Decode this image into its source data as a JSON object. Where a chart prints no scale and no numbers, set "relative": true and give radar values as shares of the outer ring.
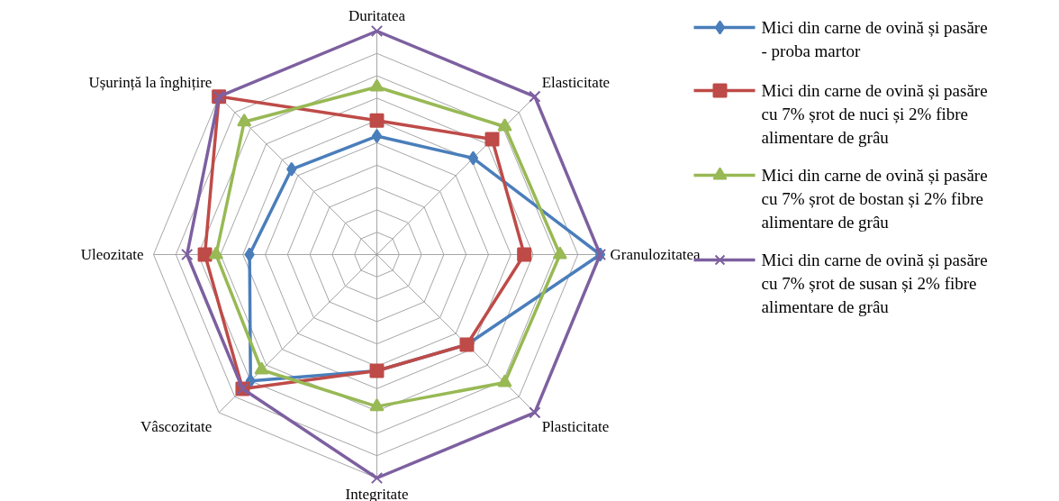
{
  "chart_data": {
    "type": "radar",
    "relative": true,
    "grid": true,
    "legend": "right",
    "categories": [
      "Duritatea",
      "Elasticitate",
      "Granulozitatea",
      "Plasticitate",
      "Integritate",
      "Vâscozitate",
      "Uleozitate",
      "Ușurință la înghițire"
    ],
    "series": [
      {
        "name": "Mici din carne de ovină și pasăre - proba martor",
        "color": "#4a7ebb",
        "marker": "diamond",
        "values": [
          0.53,
          0.61,
          1.0,
          0.57,
          0.52,
          0.8,
          0.57,
          0.54
        ]
      },
      {
        "name": "Mici din carne de ovină și pasăre cu 7% șrot de nuci și 2% fibre alimentare de grâu",
        "color": "#be4b48",
        "marker": "square",
        "values": [
          0.6,
          0.73,
          0.66,
          0.57,
          0.52,
          0.85,
          0.77,
          1.0
        ]
      },
      {
        "name": "Mici din carne de ovină și pasăre cu 7% șrot de bostan și 2% fibre alimentare de grâu",
        "color": "#98b954",
        "marker": "triangle",
        "values": [
          0.75,
          0.81,
          0.82,
          0.81,
          0.68,
          0.73,
          0.72,
          0.84
        ]
      },
      {
        "name": "Mici din carne de ovină și pasăre cu 7% șrot de susan și 2% fibre alimentare de grâu",
        "color": "#7d60a0",
        "marker": "cross",
        "values": [
          1.0,
          1.0,
          1.0,
          1.0,
          1.0,
          0.85,
          0.85,
          1.0
        ]
      }
    ]
  }
}
